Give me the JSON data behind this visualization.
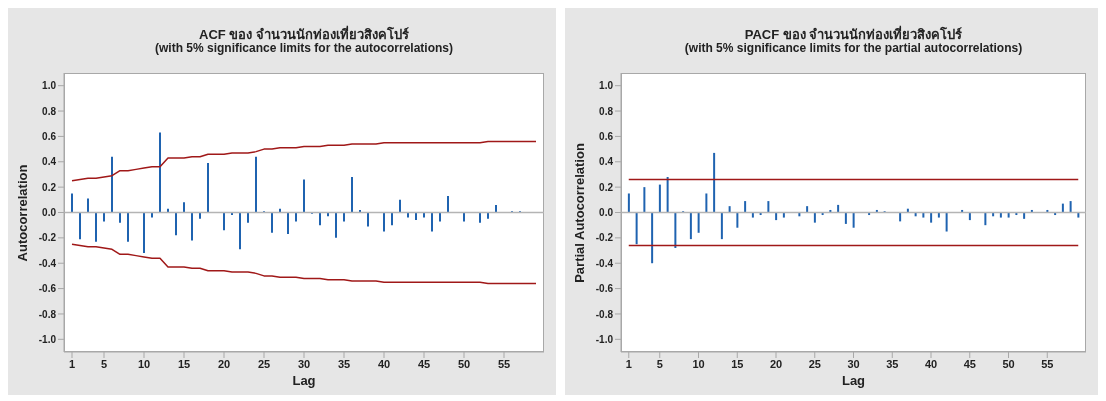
{
  "chart_data": [
    {
      "type": "bar",
      "title": "ACF ของ จำนวนนักท่องเที่ยวสิงคโปร์",
      "subtitle": "(with 5% significance limits for the autocorrelations)",
      "xlabel": "Lag",
      "ylabel": "Autocorrelation",
      "x": [
        1,
        2,
        3,
        4,
        5,
        6,
        7,
        8,
        9,
        10,
        11,
        12,
        13,
        14,
        15,
        16,
        17,
        18,
        19,
        20,
        21,
        22,
        23,
        24,
        25,
        26,
        27,
        28,
        29,
        30,
        31,
        32,
        33,
        34,
        35,
        36,
        37,
        38,
        39,
        40,
        41,
        42,
        43,
        44,
        45,
        46,
        47,
        48,
        49,
        50,
        51,
        52,
        53,
        54,
        55,
        56,
        57,
        58,
        59
      ],
      "xlim": [
        0,
        60
      ],
      "xticks": [
        1,
        5,
        10,
        15,
        20,
        25,
        30,
        35,
        40,
        45,
        50,
        55
      ],
      "ylim": [
        -1.1,
        1.1
      ],
      "yticks": [
        {
          "value": -1,
          "label": "-1.0"
        },
        {
          "value": -0.8,
          "label": "-0.8"
        },
        {
          "value": -0.6,
          "label": "-0.6"
        },
        {
          "value": -0.4,
          "label": "-0.4"
        },
        {
          "value": -0.2,
          "label": "-0.2"
        },
        {
          "value": 0,
          "label": "0.0"
        },
        {
          "value": 0.2,
          "label": "0.2"
        },
        {
          "value": 0.4,
          "label": "0.4"
        },
        {
          "value": 0.6,
          "label": "0.6"
        },
        {
          "value": 0.8,
          "label": "0.8"
        },
        {
          "value": 1,
          "label": "1.0"
        }
      ],
      "series": [
        {
          "color": "#1f63b0",
          "values": [
            0.15,
            -0.21,
            0.11,
            -0.23,
            -0.07,
            0.44,
            -0.08,
            -0.23,
            0,
            -0.32,
            -0.04,
            0.63,
            0.03,
            -0.18,
            0.08,
            -0.22,
            -0.05,
            0.39,
            0,
            -0.14,
            -0.02,
            -0.29,
            -0.08,
            0.44,
            0.01,
            -0.16,
            0.03,
            -0.17,
            -0.07,
            0.26,
            -0.01,
            -0.1,
            -0.03,
            -0.2,
            -0.07,
            0.28,
            0.02,
            -0.11,
            0,
            -0.15,
            -0.1,
            0.1,
            -0.04,
            -0.06,
            -0.04,
            -0.15,
            -0.07,
            0.13,
            0,
            -0.07,
            0,
            -0.08,
            -0.05,
            0.06,
            0,
            0.01,
            0.01,
            0,
            0
          ]
        },
        {
          "type": "line",
          "color": "#a01818",
          "values": [
            0.25,
            0.26,
            0.27,
            0.27,
            0.28,
            0.29,
            0.33,
            0.33,
            0.34,
            0.35,
            0.36,
            0.36,
            0.43,
            0.43,
            0.43,
            0.44,
            0.44,
            0.46,
            0.46,
            0.46,
            0.47,
            0.47,
            0.47,
            0.48,
            0.5,
            0.5,
            0.51,
            0.51,
            0.51,
            0.52,
            0.52,
            0.52,
            0.53,
            0.53,
            0.53,
            0.54,
            0.54,
            0.54,
            0.54,
            0.55,
            0.55,
            0.55,
            0.55,
            0.55,
            0.55,
            0.55,
            0.55,
            0.55,
            0.55,
            0.55,
            0.55,
            0.55,
            0.56,
            0.56,
            0.56,
            0.56,
            0.56,
            0.56,
            0.56
          ]
        },
        {
          "type": "line",
          "color": "#a01818",
          "values": [
            -0.25,
            -0.26,
            -0.27,
            -0.27,
            -0.28,
            -0.29,
            -0.33,
            -0.33,
            -0.34,
            -0.35,
            -0.36,
            -0.36,
            -0.43,
            -0.43,
            -0.43,
            -0.44,
            -0.44,
            -0.46,
            -0.46,
            -0.46,
            -0.47,
            -0.47,
            -0.47,
            -0.48,
            -0.5,
            -0.5,
            -0.51,
            -0.51,
            -0.51,
            -0.52,
            -0.52,
            -0.52,
            -0.53,
            -0.53,
            -0.53,
            -0.54,
            -0.54,
            -0.54,
            -0.54,
            -0.55,
            -0.55,
            -0.55,
            -0.55,
            -0.55,
            -0.55,
            -0.55,
            -0.55,
            -0.55,
            -0.55,
            -0.55,
            -0.55,
            -0.55,
            -0.56,
            -0.56,
            -0.56,
            -0.56,
            -0.56,
            -0.56,
            -0.56
          ]
        }
      ],
      "ref_lines": [
        {
          "axis": "y",
          "value": 0,
          "color": "#b4b4b4"
        }
      ]
    },
    {
      "type": "bar",
      "title": "PACF ของ จำนวนนักท่องเที่ยวสิงคโปร์",
      "subtitle": "(with 5% significance limits for the partial autocorrelations)",
      "xlabel": "Lag",
      "ylabel": "Partial Autocorrelation",
      "x": [
        1,
        2,
        3,
        4,
        5,
        6,
        7,
        8,
        9,
        10,
        11,
        12,
        13,
        14,
        15,
        16,
        17,
        18,
        19,
        20,
        21,
        22,
        23,
        24,
        25,
        26,
        27,
        28,
        29,
        30,
        31,
        32,
        33,
        34,
        35,
        36,
        37,
        38,
        39,
        40,
        41,
        42,
        43,
        44,
        45,
        46,
        47,
        48,
        49,
        50,
        51,
        52,
        53,
        54,
        55,
        56,
        57,
        58,
        59
      ],
      "xlim": [
        0,
        60
      ],
      "xticks": [
        1,
        5,
        10,
        15,
        20,
        25,
        30,
        35,
        40,
        45,
        50,
        55
      ],
      "ylim": [
        -1.1,
        1.1
      ],
      "yticks": [
        {
          "value": -1,
          "label": "-1.0"
        },
        {
          "value": -0.8,
          "label": "-0.8"
        },
        {
          "value": -0.6,
          "label": "-0.6"
        },
        {
          "value": -0.4,
          "label": "-0.4"
        },
        {
          "value": -0.2,
          "label": "-0.2"
        },
        {
          "value": 0,
          "label": "0.0"
        },
        {
          "value": 0.2,
          "label": "0.2"
        },
        {
          "value": 0.4,
          "label": "0.4"
        },
        {
          "value": 0.6,
          "label": "0.6"
        },
        {
          "value": 0.8,
          "label": "0.8"
        },
        {
          "value": 1,
          "label": "1.0"
        }
      ],
      "series": [
        {
          "color": "#1f63b0",
          "values": [
            0.15,
            -0.25,
            0.2,
            -0.4,
            0.22,
            0.28,
            -0.28,
            0.01,
            -0.21,
            -0.16,
            0.15,
            0.47,
            -0.21,
            0.05,
            -0.12,
            0.09,
            -0.04,
            -0.02,
            0.09,
            -0.06,
            -0.04,
            0,
            -0.03,
            0.05,
            -0.08,
            -0.02,
            0.02,
            0.06,
            -0.09,
            -0.12,
            0,
            -0.02,
            0.02,
            0.01,
            0,
            -0.07,
            0.03,
            -0.03,
            -0.04,
            -0.08,
            -0.04,
            -0.15,
            0,
            0.02,
            -0.06,
            0,
            -0.1,
            -0.03,
            -0.04,
            -0.04,
            -0.02,
            -0.05,
            0.02,
            0,
            0.02,
            -0.02,
            0.07,
            0.09,
            -0.04
          ]
        },
        {
          "type": "line",
          "color": "#a01818",
          "values": [
            0.26,
            0.26,
            0.26,
            0.26,
            0.26,
            0.26,
            0.26,
            0.26,
            0.26,
            0.26,
            0.26,
            0.26,
            0.26,
            0.26,
            0.26,
            0.26,
            0.26,
            0.26,
            0.26,
            0.26,
            0.26,
            0.26,
            0.26,
            0.26,
            0.26,
            0.26,
            0.26,
            0.26,
            0.26,
            0.26,
            0.26,
            0.26,
            0.26,
            0.26,
            0.26,
            0.26,
            0.26,
            0.26,
            0.26,
            0.26,
            0.26,
            0.26,
            0.26,
            0.26,
            0.26,
            0.26,
            0.26,
            0.26,
            0.26,
            0.26,
            0.26,
            0.26,
            0.26,
            0.26,
            0.26,
            0.26,
            0.26,
            0.26,
            0.26
          ]
        },
        {
          "type": "line",
          "color": "#a01818",
          "values": [
            -0.26,
            -0.26,
            -0.26,
            -0.26,
            -0.26,
            -0.26,
            -0.26,
            -0.26,
            -0.26,
            -0.26,
            -0.26,
            -0.26,
            -0.26,
            -0.26,
            -0.26,
            -0.26,
            -0.26,
            -0.26,
            -0.26,
            -0.26,
            -0.26,
            -0.26,
            -0.26,
            -0.26,
            -0.26,
            -0.26,
            -0.26,
            -0.26,
            -0.26,
            -0.26,
            -0.26,
            -0.26,
            -0.26,
            -0.26,
            -0.26,
            -0.26,
            -0.26,
            -0.26,
            -0.26,
            -0.26,
            -0.26,
            -0.26,
            -0.26,
            -0.26,
            -0.26,
            -0.26,
            -0.26,
            -0.26,
            -0.26,
            -0.26,
            -0.26,
            -0.26,
            -0.26,
            -0.26,
            -0.26,
            -0.26,
            -0.26,
            -0.26,
            -0.26
          ]
        }
      ],
      "ref_lines": [
        {
          "axis": "y",
          "value": 0,
          "color": "#b4b4b4"
        }
      ]
    }
  ]
}
